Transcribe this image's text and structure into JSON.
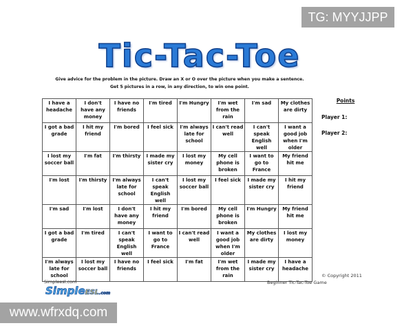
{
  "watermarks": {
    "top": "TG: MYYJJPP",
    "bottom": "www.wfrxdq.com"
  },
  "title": "Tic-Tac-Toe",
  "instructions": [
    "Give advice for the problem in the picture. Draw an X or O over the picture when you make a sentence.",
    "Get 5 pictures in a row, in any direction, to win one point."
  ],
  "grid": [
    [
      "I have a headache",
      "I don't have any money",
      "I have no friends",
      "I'm tired",
      "I'm Hungry",
      "I'm wet from the rain",
      "I'm sad",
      "My clothes are dirty"
    ],
    [
      "I got a bad grade",
      "I hit my friend",
      "I'm bored",
      "I feel sick",
      "I'm always late for school",
      "I can't read well",
      "I can't speak English well",
      "I want a good job when I'm older"
    ],
    [
      "I lost my soccer ball",
      "I'm fat",
      "I'm thirsty",
      "I made my sister cry",
      "I lost my money",
      "My cell phone is broken",
      "I want to go to France",
      "My friend hit me"
    ],
    [
      "I'm lost",
      "I'm thirsty",
      "I'm always late for school",
      "I can't speak English well",
      "I lost my soccer ball",
      "I feel sick",
      "I made my sister cry",
      "I hit my friend"
    ],
    [
      "I'm sad",
      "I'm lost",
      "I don't have any money",
      "I hit my friend",
      "I'm bored",
      "My cell phone is broken",
      "I'm Hungry",
      "My friend hit me"
    ],
    [
      "I got a bad grade",
      "I'm tired",
      "I can't speak English well",
      "I want to go to France",
      "I can't read well",
      "I want a good job when I'm older",
      "My clothes are dirty",
      "I lost my money"
    ],
    [
      "I'm always late for school",
      "I lost my soccer ball",
      "I have no friends",
      "I feel sick",
      "I'm fat",
      "I'm wet from the rain",
      "I made my sister cry",
      "I have a headache"
    ]
  ],
  "points": {
    "heading": "Points",
    "player1": "Player 1:",
    "player2": "Player 2:"
  },
  "footer": {
    "copyright": "© Copyright 2011",
    "game_title": "Beginner Tic-Tac-Toe Game",
    "site": "Simpleesl.com",
    "logo_main": "Simple",
    "logo_accent": "ESL",
    "logo_suffix": ".com"
  },
  "colors": {
    "title": "#2a7ad6",
    "watermark_bg": "#a3a3a3"
  }
}
